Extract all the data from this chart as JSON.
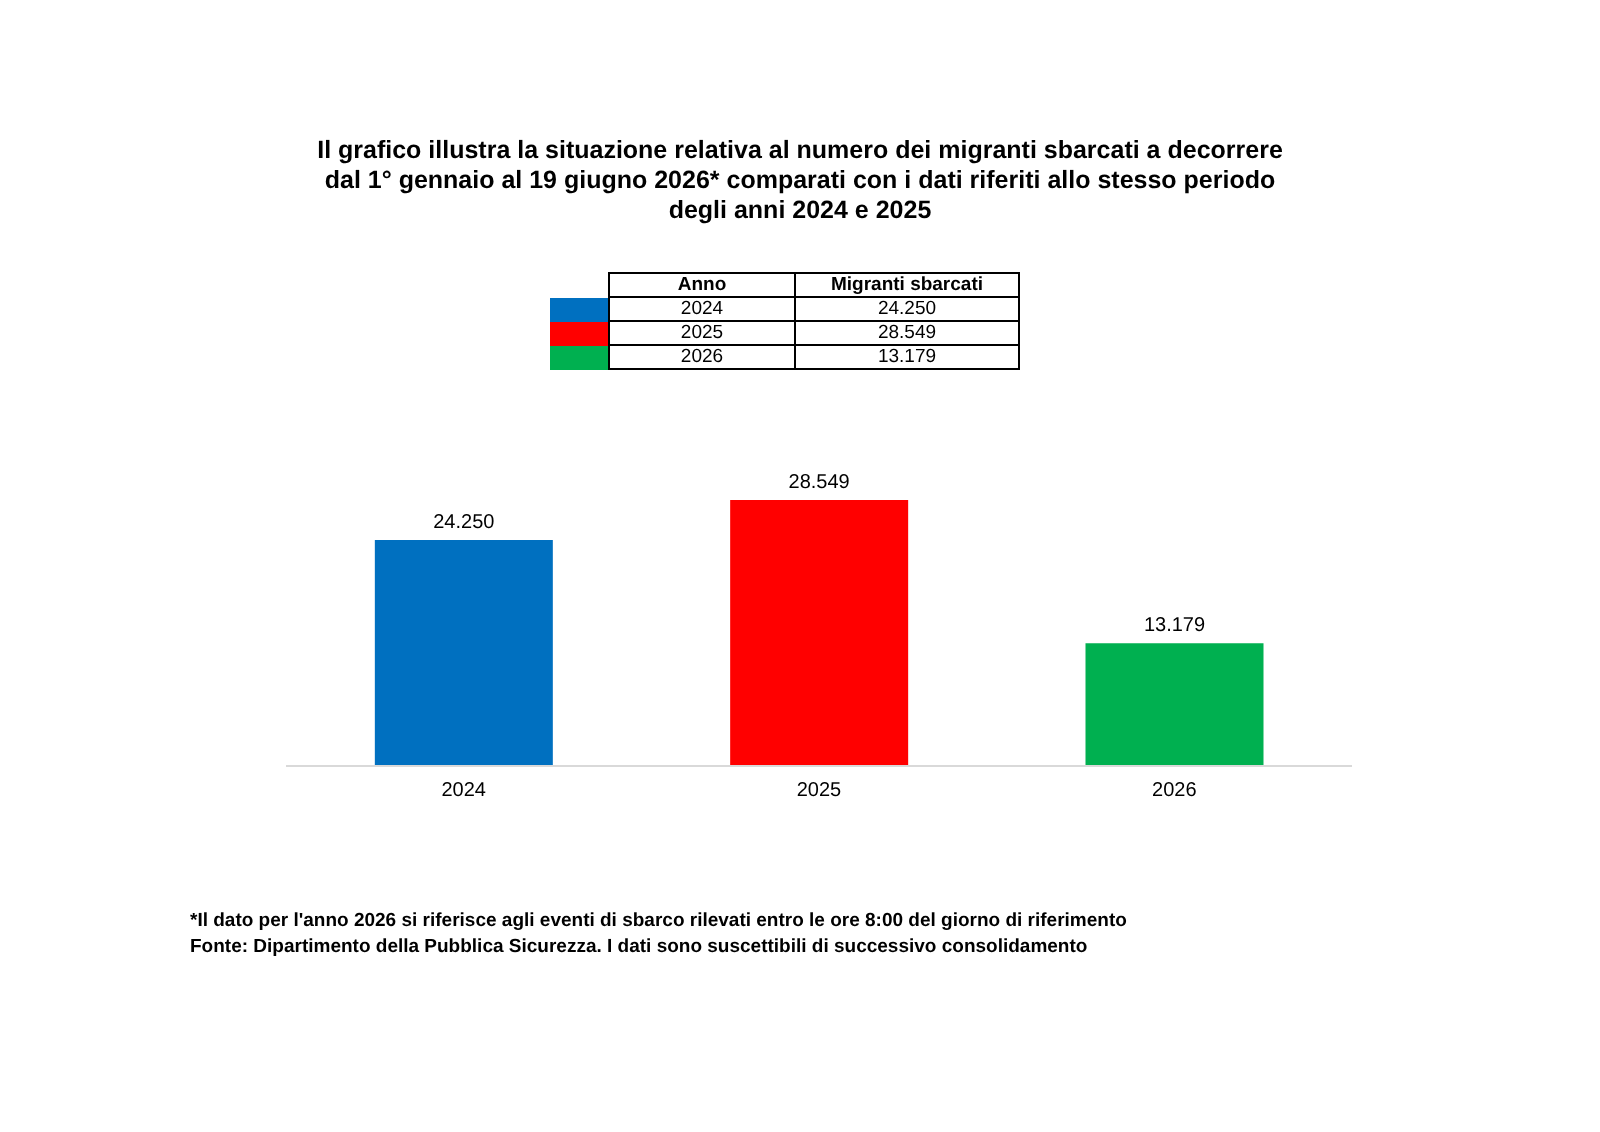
{
  "chart_data": {
    "type": "bar",
    "title": "Il grafico illustra la situazione relativa al numero dei migranti sbarcati a decorrere\ndal 1° gennaio al 19 giugno 2026* comparati con i dati riferiti allo stesso periodo\ndegli anni 2024 e 2025",
    "categories": [
      "2024",
      "2025",
      "2026"
    ],
    "values": [
      24250,
      28549,
      13179
    ],
    "value_labels": [
      "24.250",
      "28.549",
      "13.179"
    ],
    "colors": [
      "#0070c0",
      "#ff0000",
      "#00b050"
    ],
    "annotations": [
      "Anno",
      "Migranti sbarcati",
      "*Il dato per l'anno 2026 si riferisce agli eventi di sbarco rilevati entro le ore 8:00 del giorno di riferimento",
      "Fonte: Dipartimento della Pubblica Sicurezza. I dati sono suscettibili di successivo consolidamento"
    ],
    "grid": false
  }
}
